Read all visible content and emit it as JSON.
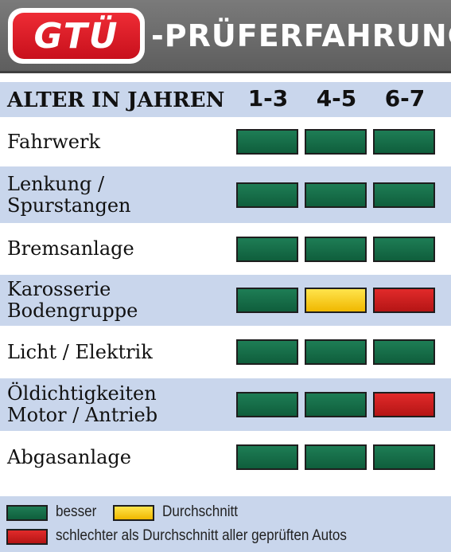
{
  "header": {
    "logo_text": "GTÜ",
    "title": "-PRÜFERFAHRUNG"
  },
  "columns": {
    "age_label": "ALTER IN JAHREN",
    "ages": [
      "1-3",
      "4-5",
      "6-7"
    ]
  },
  "rows": [
    {
      "label_lines": [
        "Fahrwerk"
      ],
      "ratings": [
        "besser",
        "besser",
        "besser"
      ]
    },
    {
      "label_lines": [
        "Lenkung /",
        "Spurstangen"
      ],
      "ratings": [
        "besser",
        "besser",
        "besser"
      ]
    },
    {
      "label_lines": [
        "Bremsanlage"
      ],
      "ratings": [
        "besser",
        "besser",
        "besser"
      ]
    },
    {
      "label_lines": [
        "Karosserie",
        "Bodengruppe"
      ],
      "ratings": [
        "besser",
        "Durchschnitt",
        "schlechter"
      ]
    },
    {
      "label_lines": [
        "Licht / Elektrik"
      ],
      "ratings": [
        "besser",
        "besser",
        "besser"
      ]
    },
    {
      "label_lines": [
        "Öldichtigkeiten",
        "Motor / Antrieb"
      ],
      "ratings": [
        "besser",
        "besser",
        "schlechter"
      ]
    },
    {
      "label_lines": [
        "Abgasanlage"
      ],
      "ratings": [
        "besser",
        "besser",
        "besser"
      ]
    }
  ],
  "legend": {
    "better": "besser",
    "average": "Durchschnitt",
    "worse": "schlechter als Durchschnitt aller geprüften Autos"
  },
  "colors": {
    "besser": "#166b47",
    "Durchschnitt": "#f7cf1e",
    "schlechter": "#cc1f1f",
    "row_band": "#c9d6ec",
    "header_bg": "#6b6b6b",
    "logo_red": "#d81e2a"
  }
}
